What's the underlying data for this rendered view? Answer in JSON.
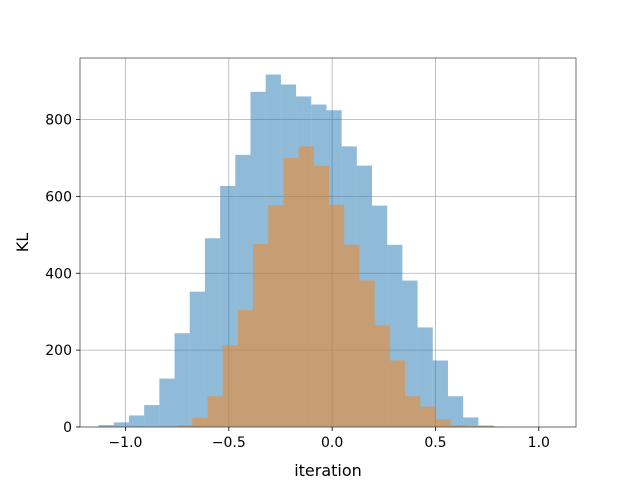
{
  "chart_data": {
    "type": "bar",
    "subtype": "overlapping-histogram",
    "title": "",
    "xlabel": "iteration",
    "ylabel": "KL",
    "xlim": [
      -1.22,
      1.18
    ],
    "ylim": [
      0,
      960
    ],
    "grid": true,
    "bin_width": 0.0735,
    "x_ticks": [
      -1.0,
      -0.5,
      0.0,
      0.5,
      1.0
    ],
    "x_tick_labels": [
      "−1.0",
      "−0.5",
      "0.0",
      "0.5",
      "1.0"
    ],
    "y_ticks": [
      0,
      200,
      400,
      600,
      800
    ],
    "y_tick_labels": [
      "0",
      "200",
      "400",
      "600",
      "800"
    ],
    "series": [
      {
        "color": "#1f77b4",
        "alpha": 0.5,
        "bin_start": -1.13,
        "counts": [
          5,
          12,
          30,
          57,
          126,
          244,
          352,
          491,
          627,
          708,
          872,
          917,
          891,
          860,
          839,
          824,
          730,
          680,
          576,
          474,
          381,
          259,
          173,
          80,
          25,
          4
        ]
      },
      {
        "color": "#ff7f0e",
        "alpha": 0.5,
        "bin_start": -0.75,
        "counts": [
          5,
          24,
          80,
          213,
          304,
          476,
          577,
          700,
          730,
          680,
          578,
          474,
          381,
          264,
          173,
          80,
          53,
          20,
          5,
          2,
          2,
          1,
          1,
          1,
          0,
          0,
          0
        ]
      }
    ]
  }
}
